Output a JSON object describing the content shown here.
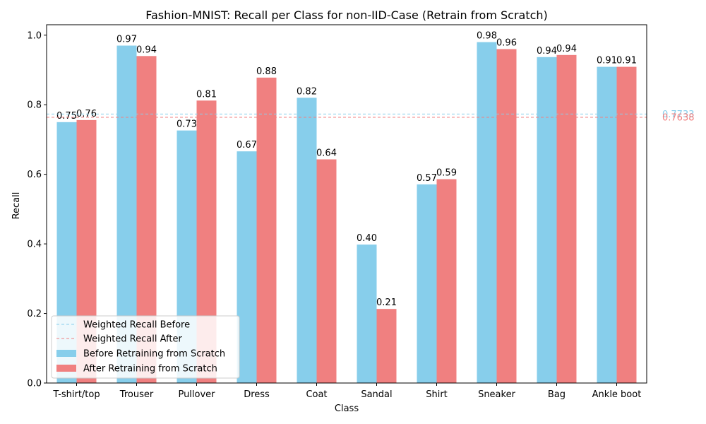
{
  "chart_data": {
    "type": "bar",
    "title": "Fashion-MNIST: Recall per Class for non-IID-Case (Retrain from Scratch)",
    "xlabel": "Class",
    "ylabel": "Recall",
    "ylim": [
      0,
      1.03
    ],
    "yticks": [
      "0.0",
      "0.2",
      "0.4",
      "0.6",
      "0.8",
      "1.0"
    ],
    "categories": [
      "T-shirt/top",
      "Trouser",
      "Pullover",
      "Dress",
      "Coat",
      "Sandal",
      "Shirt",
      "Sneaker",
      "Bag",
      "Ankle boot"
    ],
    "series": [
      {
        "name": "Before Retraining from Scratch",
        "color": "#87ceeb",
        "values": [
          0.75,
          0.97,
          0.726,
          0.666,
          0.82,
          0.398,
          0.571,
          0.98,
          0.937,
          0.909
        ],
        "labels": [
          "0.75",
          "0.97",
          "0.73",
          "0.67",
          "0.82",
          "0.40",
          "0.57",
          "0.98",
          "0.94",
          "0.91"
        ]
      },
      {
        "name": "After Retraining from Scratch",
        "color": "#f08080",
        "values": [
          0.756,
          0.94,
          0.812,
          0.878,
          0.643,
          0.213,
          0.586,
          0.96,
          0.943,
          0.909
        ],
        "labels": [
          "0.76",
          "0.94",
          "0.81",
          "0.88",
          "0.64",
          "0.21",
          "0.59",
          "0.96",
          "0.94",
          "0.91"
        ]
      }
    ],
    "reference_lines": [
      {
        "name": "Weighted Recall Before",
        "value": 0.7733,
        "label": "0.7733",
        "color": "#87ceeb"
      },
      {
        "name": "Weighted Recall After",
        "value": 0.7638,
        "label": "0.7638",
        "color": "#f08080"
      }
    ],
    "legend_position": "lower-left",
    "grid": false
  }
}
